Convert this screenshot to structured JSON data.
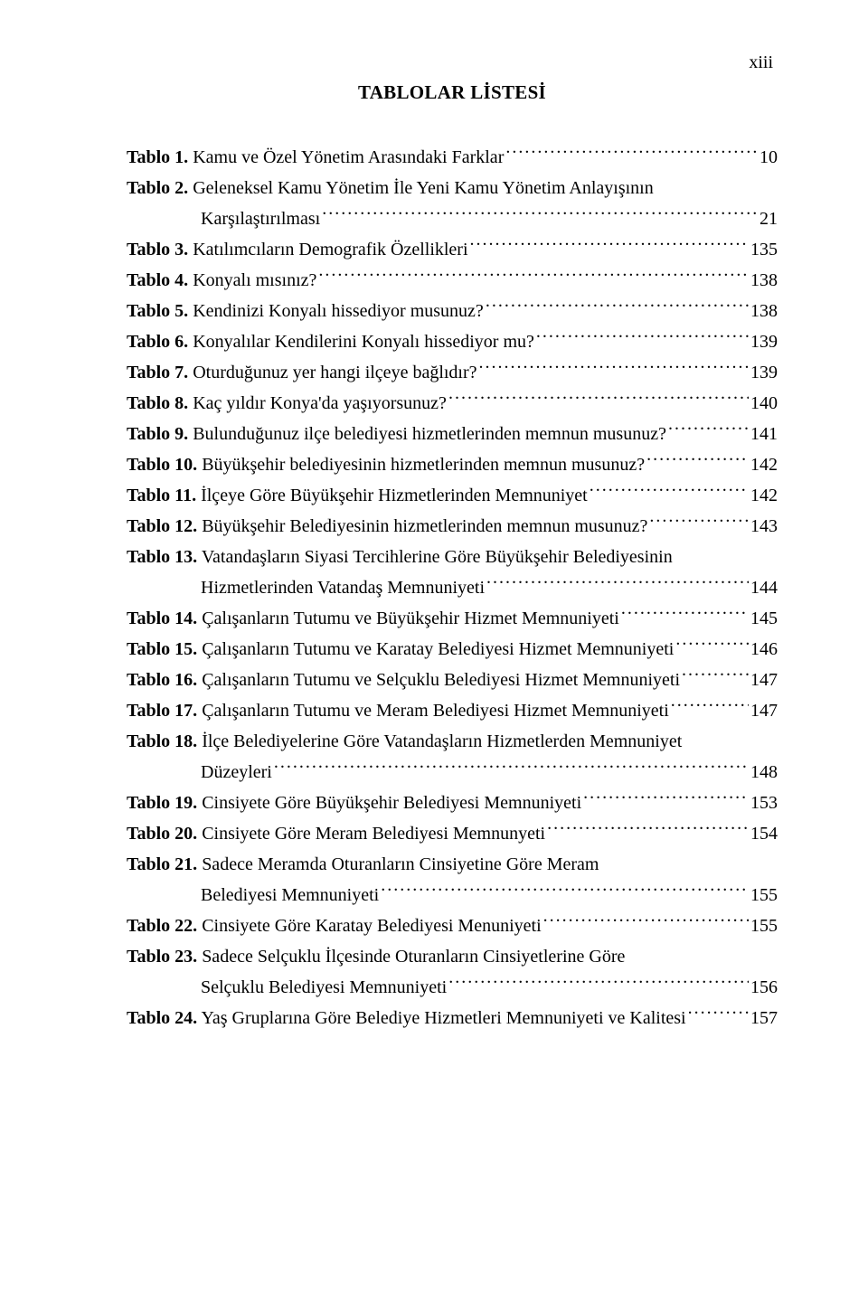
{
  "pageNumber": "xiii",
  "title": "TABLOLAR LİSTESİ",
  "entries": [
    {
      "num": "Tablo 1.",
      "text": "Kamu ve Özel Yönetim Arasındaki Farklar",
      "page": "10",
      "cont": null
    },
    {
      "num": "Tablo 2.",
      "text": "Geleneksel Kamu Yönetim İle Yeni Kamu Yönetim Anlayışının",
      "page": null,
      "cont": {
        "text": "Karşılaştırılması",
        "page": "21"
      }
    },
    {
      "num": "Tablo 3.",
      "text": "Katılımcıların Demografik Özellikleri",
      "page": "135",
      "cont": null
    },
    {
      "num": "Tablo 4.",
      "text": "Konyalı mısınız?",
      "page": "138",
      "cont": null
    },
    {
      "num": "Tablo 5.",
      "text": "Kendinizi Konyalı hissediyor musunuz? ",
      "page": "138",
      "cont": null
    },
    {
      "num": "Tablo 6.",
      "text": "Konyalılar Kendilerini Konyalı hissediyor mu? ",
      "page": "139",
      "cont": null
    },
    {
      "num": "Tablo 7.",
      "text": "Oturduğunuz yer hangi ilçeye bağlıdır?",
      "page": "139",
      "cont": null
    },
    {
      "num": "Tablo 8.",
      "text": "Kaç yıldır Konya'da yaşıyorsunuz?",
      "page": "140",
      "cont": null
    },
    {
      "num": "Tablo 9.",
      "text": "Bulunduğunuz ilçe belediyesi hizmetlerinden memnun musunuz?",
      "page": "141",
      "cont": null
    },
    {
      "num": "Tablo 10.",
      "text": "Büyükşehir belediyesinin hizmetlerinden memnun musunuz?",
      "page": "142",
      "cont": null
    },
    {
      "num": "Tablo 11.",
      "text": "İlçeye Göre Büyükşehir Hizmetlerinden Memnuniyet",
      "page": "142",
      "cont": null
    },
    {
      "num": "Tablo 12.",
      "text": "Büyükşehir Belediyesinin hizmetlerinden memnun musunuz? ",
      "page": "143",
      "cont": null
    },
    {
      "num": "Tablo 13.",
      "text": "Vatandaşların Siyasi Tercihlerine Göre Büyükşehir Belediyesinin",
      "page": null,
      "cont": {
        "text": "Hizmetlerinden Vatandaş Memnuniyeti",
        "page": "144"
      }
    },
    {
      "num": "Tablo 14.",
      "text": "Çalışanların Tutumu ve Büyükşehir Hizmet Memnuniyeti",
      "page": "145",
      "cont": null
    },
    {
      "num": "Tablo 15.",
      "text": "Çalışanların Tutumu ve Karatay Belediyesi Hizmet Memnuniyeti",
      "page": "146",
      "cont": null
    },
    {
      "num": "Tablo 16.",
      "text": "Çalışanların Tutumu ve Selçuklu Belediyesi Hizmet Memnuniyeti",
      "page": "147",
      "cont": null
    },
    {
      "num": "Tablo 17.",
      "text": "Çalışanların Tutumu ve Meram Belediyesi Hizmet Memnuniyeti",
      "page": "147",
      "cont": null
    },
    {
      "num": "Tablo 18.",
      "text": "İlçe Belediyelerine Göre Vatandaşların Hizmetlerden Memnuniyet",
      "page": null,
      "cont": {
        "text": "Düzeyleri",
        "page": "148"
      }
    },
    {
      "num": "Tablo 19.",
      "text": "Cinsiyete Göre Büyükşehir Belediyesi Memnuniyeti",
      "page": "153",
      "cont": null
    },
    {
      "num": "Tablo 20.",
      "text": "Cinsiyete Göre Meram Belediyesi Memnunyeti",
      "page": "154",
      "cont": null
    },
    {
      "num": "Tablo 21.",
      "text": "Sadece Meramda Oturanların Cinsiyetine Göre Meram",
      "page": null,
      "cont": {
        "text": "Belediyesi Memnuniyeti",
        "page": "155"
      }
    },
    {
      "num": "Tablo 22.",
      "text": "Cinsiyete Göre Karatay Belediyesi Menuniyeti",
      "page": "155",
      "cont": null
    },
    {
      "num": "Tablo 23.",
      "text": "Sadece Selçuklu İlçesinde Oturanların Cinsiyetlerine Göre",
      "page": null,
      "cont": {
        "text": "Selçuklu Belediyesi Memnuniyeti",
        "page": "156"
      }
    },
    {
      "num": "Tablo 24.",
      "text": "Yaş Gruplarına Göre Belediye Hizmetleri Memnuniyeti ve Kalitesi",
      "page": "157",
      "cont": null
    }
  ]
}
